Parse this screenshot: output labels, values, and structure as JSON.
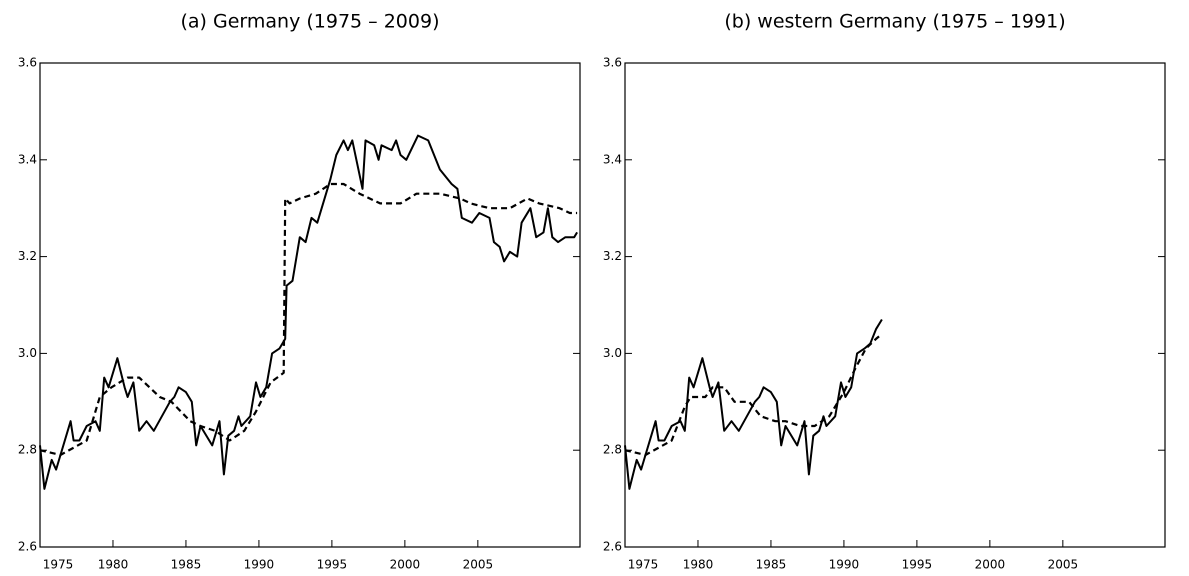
{
  "chart_data": [
    {
      "type": "line",
      "title": "(a) Germany (1975 – 2009)",
      "xlim": [
        1975,
        2012
      ],
      "xticks": [
        1975,
        1980,
        1985,
        1990,
        1995,
        2000,
        2005
      ],
      "ylim": [
        2.6,
        3.6
      ],
      "yticks": [
        2.6,
        2.8,
        {
          "value": 3,
          "label": "3.0"
        },
        3.2,
        3.4,
        3.6
      ],
      "series": [
        {
          "color": "#000000",
          "dash": false,
          "x": [
            1975.0,
            1975.3,
            1975.8,
            1976.1,
            1977.1,
            1977.3,
            1977.7,
            1978.2,
            1978.8,
            1979.1,
            1979.4,
            1979.7,
            1980.3,
            1980.8,
            1981.0,
            1981.4,
            1981.8,
            1982.3,
            1982.8,
            1983.9,
            1984.2,
            1984.5,
            1985.0,
            1985.4,
            1985.7,
            1986.0,
            1986.8,
            1987.3,
            1987.6,
            1987.9,
            1988.3,
            1988.6,
            1988.8,
            1989.4,
            1989.8,
            1990.1,
            1990.5,
            1990.9,
            1991.4,
            1991.8,
            1991.9,
            1992.3,
            1992.8,
            1993.2,
            1993.6,
            1994.0,
            1994.9,
            1995.3,
            1995.8,
            1996.1,
            1996.4,
            1997.1,
            1997.3,
            1997.9,
            1998.2,
            1998.4,
            1999.1,
            1999.4,
            1999.7,
            2000.1,
            2000.9,
            2001.6,
            2002.4,
            2003.2,
            2003.6,
            2003.9,
            2004.6,
            2005.1,
            2005.8,
            2006.1,
            2006.5,
            2006.8,
            2007.2,
            2007.7,
            2008.0,
            2008.6,
            2009.0,
            2009.5,
            2009.8,
            2010.1,
            2010.5,
            2011.0,
            2011.6,
            2011.8
          ],
          "values": [
            2.81,
            2.72,
            2.78,
            2.76,
            2.86,
            2.82,
            2.82,
            2.85,
            2.86,
            2.84,
            2.95,
            2.93,
            2.99,
            2.93,
            2.91,
            2.94,
            2.84,
            2.86,
            2.84,
            2.9,
            2.91,
            2.93,
            2.92,
            2.9,
            2.81,
            2.85,
            2.81,
            2.86,
            2.75,
            2.83,
            2.84,
            2.87,
            2.85,
            2.87,
            2.94,
            2.91,
            2.93,
            3.0,
            3.01,
            3.03,
            3.14,
            3.15,
            3.24,
            3.23,
            3.28,
            3.27,
            3.36,
            3.41,
            3.44,
            3.42,
            3.44,
            3.34,
            3.44,
            3.43,
            3.4,
            3.43,
            3.42,
            3.44,
            3.41,
            3.4,
            3.45,
            3.44,
            3.38,
            3.35,
            3.34,
            3.28,
            3.27,
            3.29,
            3.28,
            3.23,
            3.22,
            3.19,
            3.21,
            3.2,
            3.27,
            3.3,
            3.24,
            3.25,
            3.3,
            3.24,
            3.23,
            3.24,
            3.24,
            3.25
          ]
        },
        {
          "color": "#000000",
          "dash": true,
          "x": [
            1975.0,
            1976.4,
            1978.2,
            1979.1,
            1979.9,
            1981.0,
            1981.8,
            1983.2,
            1984.0,
            1985.3,
            1986.0,
            1987.0,
            1988.0,
            1989.0,
            1989.8,
            1990.8,
            1991.7,
            1991.8,
            1992.1,
            1992.8,
            1993.9,
            1994.9,
            1995.8,
            1996.9,
            1998.3,
            1999.7,
            2000.8,
            2002.4,
            2003.8,
            2004.5,
            2005.8,
            2007.2,
            2008.4,
            2009.2,
            2010.6,
            2011.3,
            2011.8
          ],
          "values": [
            2.8,
            2.79,
            2.82,
            2.91,
            2.93,
            2.95,
            2.95,
            2.91,
            2.9,
            2.86,
            2.85,
            2.84,
            2.82,
            2.84,
            2.88,
            2.94,
            2.96,
            3.32,
            3.31,
            3.32,
            3.33,
            3.35,
            3.35,
            3.33,
            3.31,
            3.31,
            3.33,
            3.33,
            3.32,
            3.31,
            3.3,
            3.3,
            3.32,
            3.31,
            3.3,
            3.29,
            3.29
          ]
        }
      ]
    },
    {
      "type": "line",
      "title": "(b) western Germany (1975 – 1991)",
      "xlim": [
        1975,
        2012
      ],
      "xticks": [
        1975,
        1980,
        1985,
        1990,
        1995,
        2000,
        2005
      ],
      "ylim": [
        2.6,
        3.6
      ],
      "yticks": [
        2.6,
        2.8,
        {
          "value": 3,
          "label": "3.0"
        },
        3.2,
        3.4,
        3.6
      ],
      "series": [
        {
          "color": "#000000",
          "dash": false,
          "x": [
            1975.0,
            1975.3,
            1975.8,
            1976.1,
            1977.1,
            1977.3,
            1977.7,
            1978.2,
            1978.8,
            1979.1,
            1979.4,
            1979.7,
            1980.3,
            1980.8,
            1981.0,
            1981.4,
            1981.8,
            1982.3,
            1982.8,
            1983.9,
            1984.2,
            1984.5,
            1985.0,
            1985.4,
            1985.7,
            1986.0,
            1986.8,
            1987.3,
            1987.6,
            1987.9,
            1988.3,
            1988.6,
            1988.8,
            1989.4,
            1989.8,
            1990.1,
            1990.5,
            1990.9,
            1991.4,
            1991.8,
            1992.2,
            1992.6
          ],
          "values": [
            2.81,
            2.72,
            2.78,
            2.76,
            2.86,
            2.82,
            2.82,
            2.85,
            2.86,
            2.84,
            2.95,
            2.93,
            2.99,
            2.93,
            2.91,
            2.94,
            2.84,
            2.86,
            2.84,
            2.9,
            2.91,
            2.93,
            2.92,
            2.9,
            2.81,
            2.85,
            2.81,
            2.86,
            2.75,
            2.83,
            2.84,
            2.87,
            2.85,
            2.87,
            2.94,
            2.91,
            2.93,
            3.0,
            3.01,
            3.02,
            3.05,
            3.07
          ]
        },
        {
          "color": "#000000",
          "dash": true,
          "x": [
            1975.0,
            1976.4,
            1978.2,
            1979.1,
            1979.5,
            1980.5,
            1981.0,
            1981.8,
            1982.5,
            1983.5,
            1984.3,
            1985.3,
            1986.0,
            1987.0,
            1988.0,
            1989.0,
            1990.0,
            1990.8,
            1991.5,
            1992.2,
            1992.6
          ],
          "values": [
            2.8,
            2.79,
            2.82,
            2.89,
            2.91,
            2.91,
            2.93,
            2.93,
            2.9,
            2.9,
            2.87,
            2.86,
            2.86,
            2.85,
            2.85,
            2.87,
            2.92,
            2.97,
            3.01,
            3.03,
            3.04
          ]
        }
      ]
    }
  ]
}
